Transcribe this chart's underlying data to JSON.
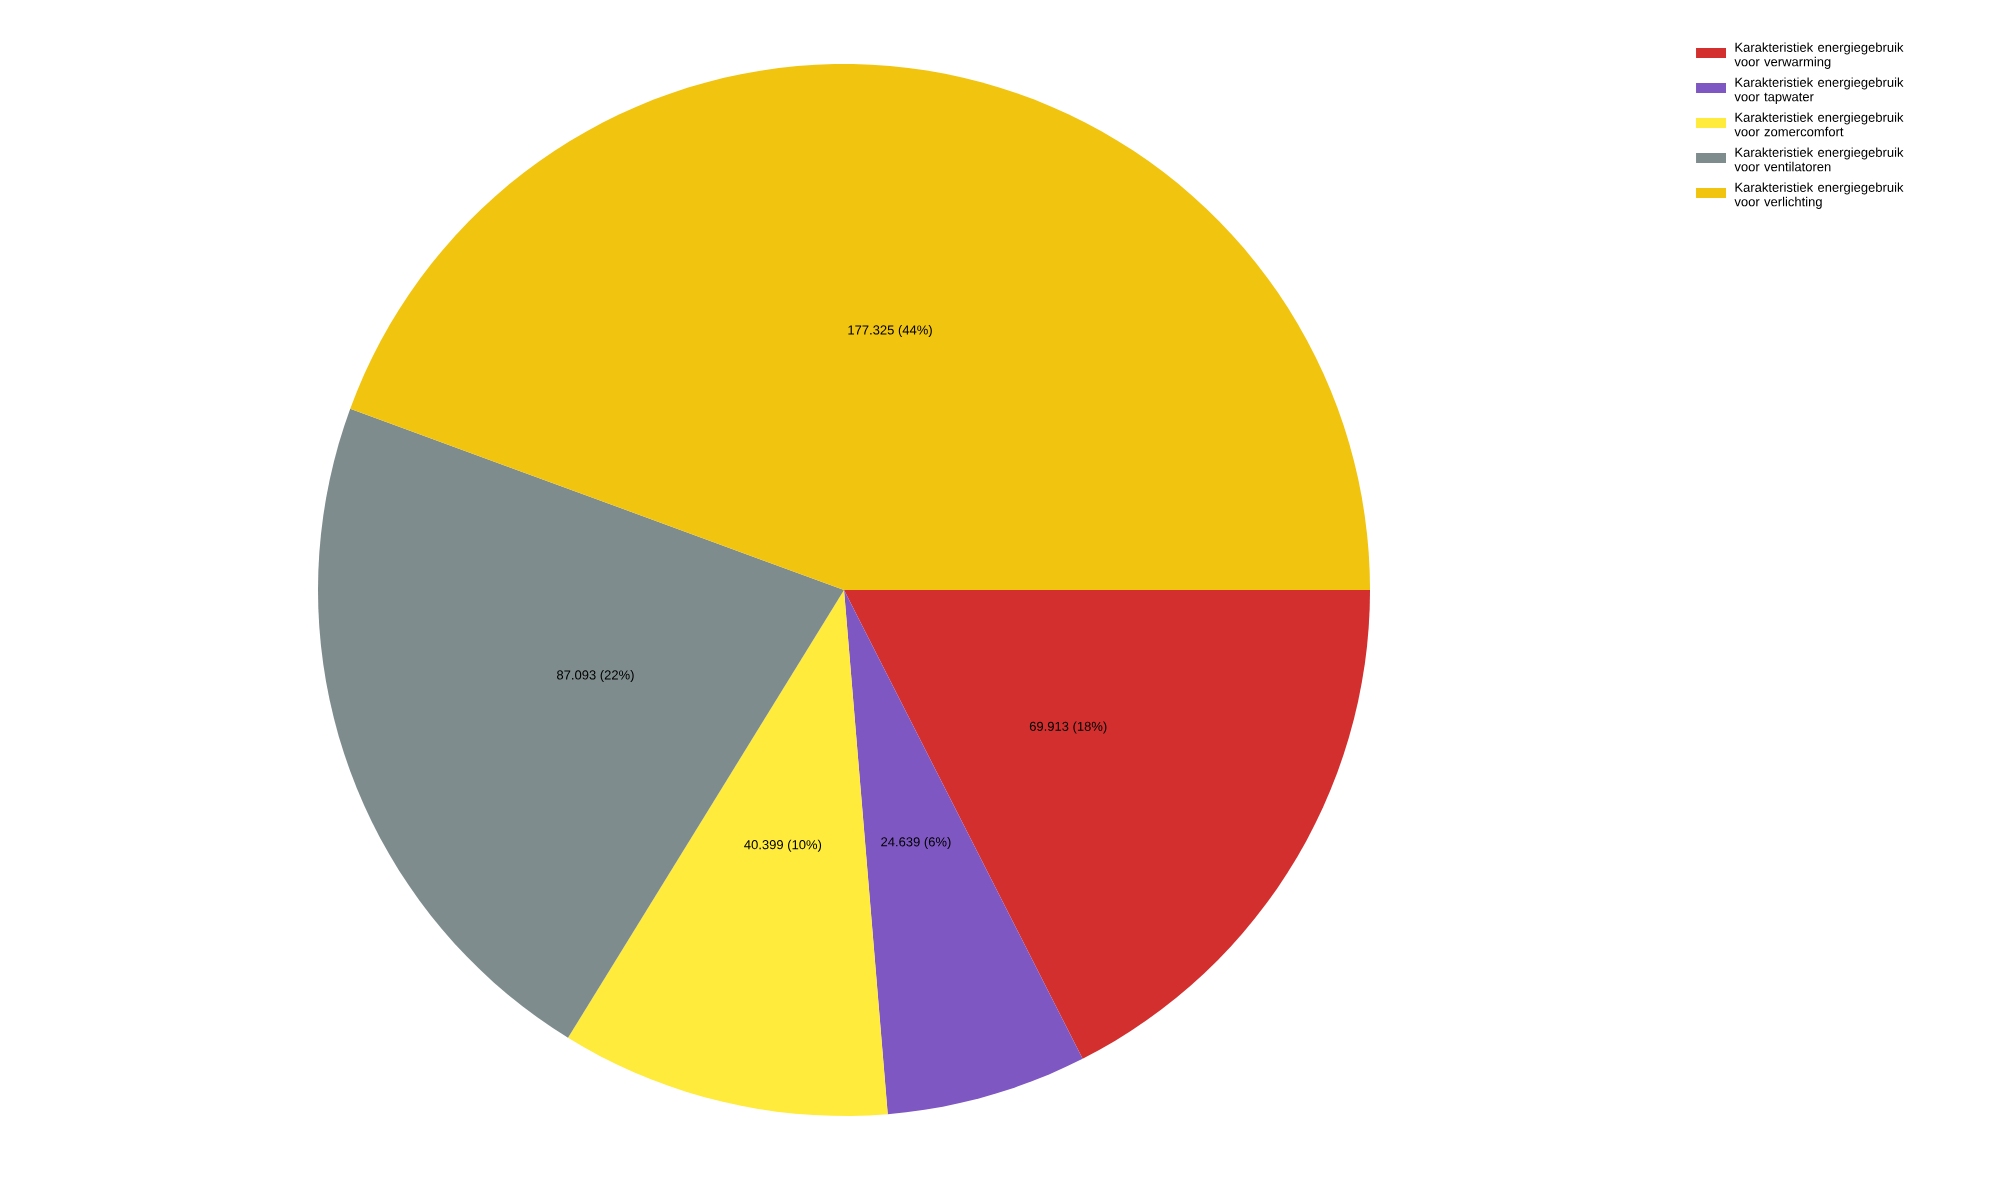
{
  "chart_data": {
    "type": "pie",
    "categories": [
      "Karakteristiek energiegebruik voor verwarming",
      "Karakteristiek energiegebruik voor tapwater",
      "Karakteristiek energiegebruik voor zomercomfort",
      "Karakteristiek energiegebruik voor ventilatoren",
      "Karakteristiek energiegebruik voor verlichting"
    ],
    "values": [
      69.913,
      24.639,
      40.399,
      87.093,
      177.325
    ],
    "value_labels": [
      "69.913 (18%)",
      "24.639 (6%)",
      "40.399 (10%)",
      "87.093 (22%)",
      "177.325 (44%)"
    ],
    "colors": [
      "#d32f2f",
      "#7e57c2",
      "#ffeb3b",
      "#7f8c8d",
      "#f1c40f"
    ],
    "legend": "top right"
  }
}
